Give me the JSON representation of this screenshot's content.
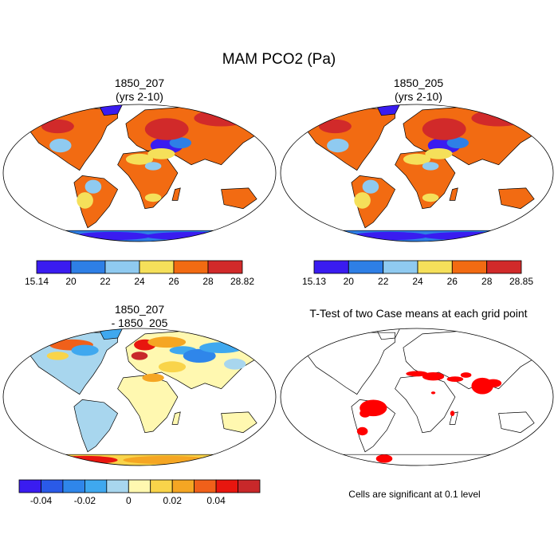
{
  "page": {
    "title": "MAM PCO2 (Pa)"
  },
  "colors": {
    "ocean": "#ffffff",
    "land_line": "#000000",
    "signif": "#ff0000"
  },
  "chart_data": [
    {
      "type": "heatmap",
      "id": "case1",
      "title": "1850_207",
      "subtitle": "(yrs 2-10)",
      "colorbar": {
        "colors": [
          "#3a1cf0",
          "#2e7fe6",
          "#8fcaf0",
          "#f5e05a",
          "#f26b12",
          "#d12a2a"
        ],
        "labels": [
          "15.14",
          "20",
          "22",
          "24",
          "26",
          "28",
          "28.82"
        ],
        "range": [
          15.14,
          28.82
        ]
      }
    },
    {
      "type": "heatmap",
      "id": "case2",
      "title": "1850_205",
      "subtitle": "(yrs 2-10)",
      "colorbar": {
        "colors": [
          "#3a1cf0",
          "#2e7fe6",
          "#8fcaf0",
          "#f5e05a",
          "#f26b12",
          "#d12a2a"
        ],
        "labels": [
          "15.13",
          "20",
          "22",
          "24",
          "26",
          "28",
          "28.85"
        ],
        "range": [
          15.13,
          28.85
        ]
      }
    },
    {
      "type": "heatmap",
      "id": "diff",
      "title": "1850_207",
      "subtitle": "- 1850_205",
      "colorbar": {
        "colors": [
          "#3a1cf0",
          "#2a5ae8",
          "#2f86ea",
          "#3fa8ef",
          "#a8d6ee",
          "#fff8b0",
          "#f9d44a",
          "#f5a623",
          "#f0601a",
          "#e8160f",
          "#c8282a"
        ],
        "labels": [
          "-0.04",
          "-0.02",
          "0",
          "0.02",
          "0.04"
        ],
        "label_after_box": [
          1,
          3,
          5,
          7,
          9
        ]
      }
    },
    {
      "type": "heatmap",
      "id": "ttest",
      "title": "T-Test of two Case means at each grid point",
      "note": "Cells are significant at 0.1 level"
    }
  ]
}
